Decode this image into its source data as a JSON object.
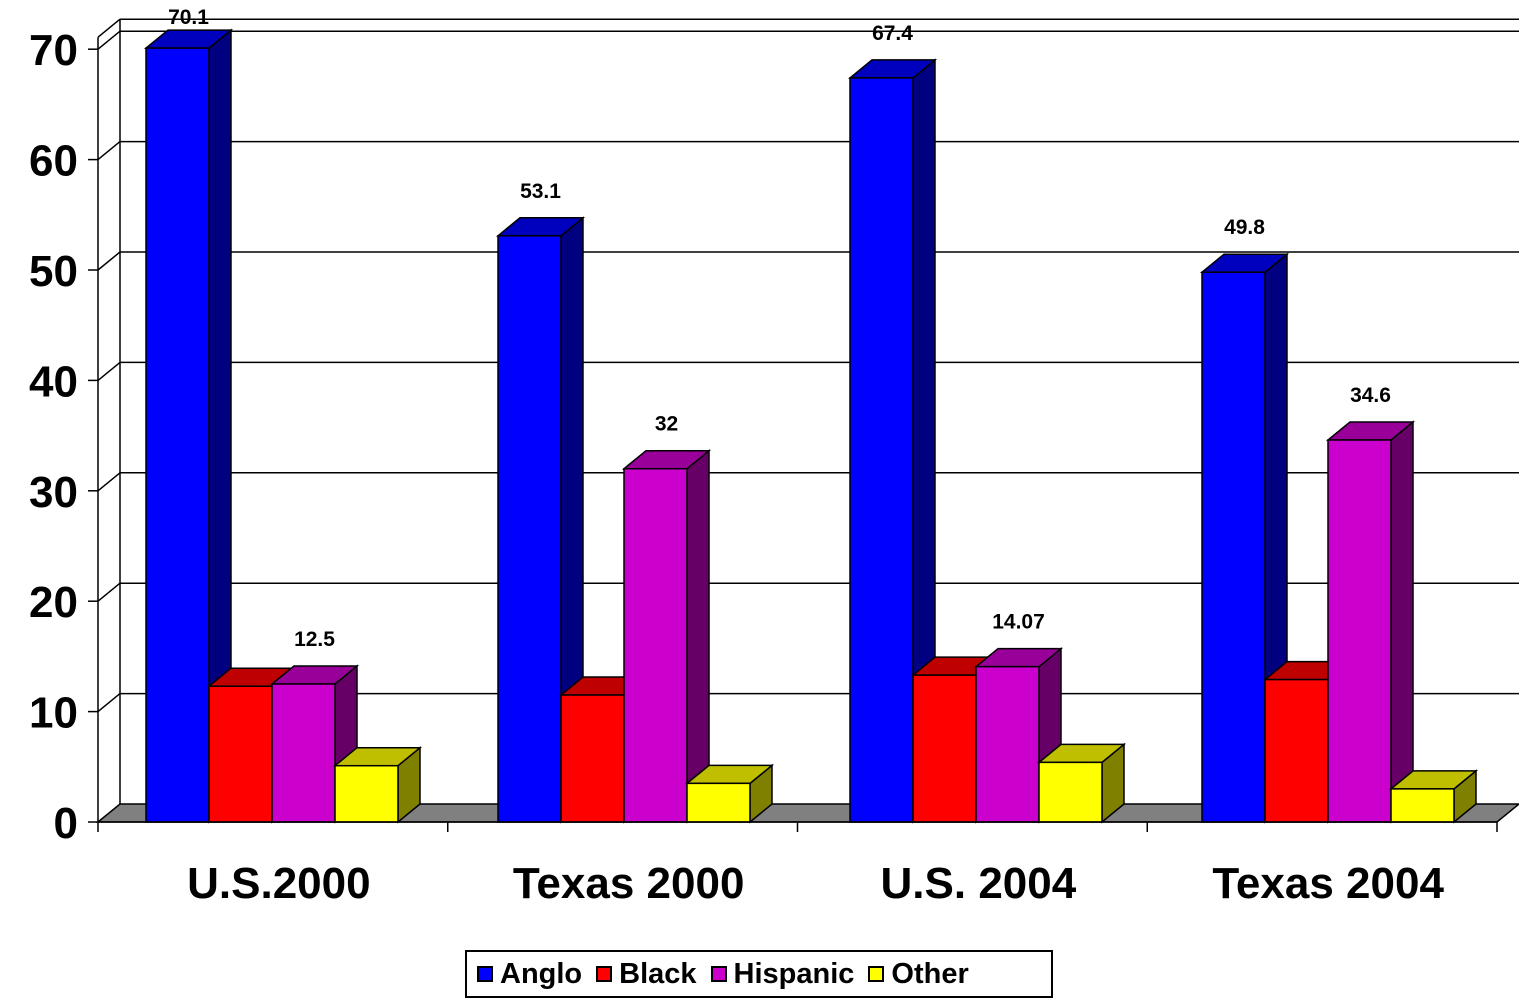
{
  "chart_data": {
    "type": "bar",
    "categories": [
      "U.S.2000",
      "Texas 2000",
      "U.S. 2004",
      "Texas 2004"
    ],
    "series": [
      {
        "name": "Anglo",
        "color": "#0000ff",
        "values": [
          70.1,
          53.1,
          67.4,
          49.8
        ]
      },
      {
        "name": "Black",
        "color": "#ff0000",
        "values": [
          12.3,
          11.5,
          13.3,
          12.9
        ]
      },
      {
        "name": "Hispanic",
        "color": "#cc00cc",
        "values": [
          12.5,
          32,
          14.07,
          34.6
        ]
      },
      {
        "name": "Other",
        "color": "#ffff00",
        "values": [
          5.1,
          3.5,
          5.4,
          3.0
        ]
      }
    ],
    "data_labels": [
      {
        "series": "Anglo",
        "category": "U.S.2000",
        "text": "70.1"
      },
      {
        "series": "Anglo",
        "category": "Texas 2000",
        "text": "53.1"
      },
      {
        "series": "Anglo",
        "category": "U.S. 2004",
        "text": "67.4"
      },
      {
        "series": "Anglo",
        "category": "Texas 2004",
        "text": "49.8"
      },
      {
        "series": "Hispanic",
        "category": "U.S.2000",
        "text": "12.5"
      },
      {
        "series": "Hispanic",
        "category": "Texas 2000",
        "text": "32"
      },
      {
        "series": "Hispanic",
        "category": "U.S. 2004",
        "text": "14.07"
      },
      {
        "series": "Hispanic",
        "category": "Texas 2004",
        "text": "34.6"
      }
    ],
    "yticks": [
      "0",
      "10",
      "20",
      "30",
      "40",
      "50",
      "60",
      "70"
    ],
    "ylim": [
      0,
      70
    ],
    "title": "",
    "xlabel": "",
    "ylabel": "",
    "grid": true,
    "legend_position": "bottom",
    "style": "3d-clustered-column",
    "colors": {
      "floor": "#808080",
      "gridline": "#000000",
      "background": "#ffffff"
    }
  }
}
